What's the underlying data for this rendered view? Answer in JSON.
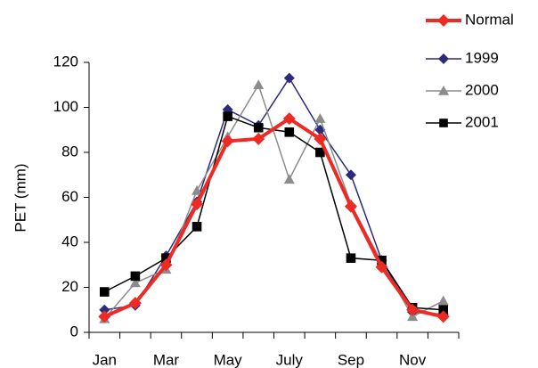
{
  "chart_data": {
    "type": "line",
    "y_label": "PET (mm)",
    "categories": [
      "Jan",
      null,
      "Mar",
      null,
      "May",
      null,
      "July",
      null,
      "Sep",
      null,
      "Nov",
      null
    ],
    "ylim": [
      0,
      120
    ],
    "yticks": [
      0,
      20,
      40,
      60,
      80,
      100,
      120
    ],
    "legend": "top-right",
    "series": [
      {
        "name": "Normal",
        "color": "#ee2a24",
        "marker": "diamond",
        "values": [
          7,
          13,
          30,
          57,
          85,
          86,
          95,
          86,
          56,
          29,
          10,
          7
        ]
      },
      {
        "name": "1999",
        "color": "#2b2a7c",
        "marker": "diamond",
        "values": [
          10,
          12,
          34,
          58,
          99,
          92,
          113,
          90,
          70,
          32,
          9,
          8
        ]
      },
      {
        "name": "2000",
        "color": "#8c8c8c",
        "marker": "triangle",
        "values": [
          6,
          22,
          28,
          63,
          87,
          110,
          68,
          95,
          57,
          31,
          7,
          14
        ]
      },
      {
        "name": "2001",
        "color": "#000000",
        "marker": "square",
        "values": [
          18,
          25,
          33,
          47,
          96,
          91,
          89,
          80,
          33,
          32,
          11,
          10
        ]
      }
    ]
  }
}
